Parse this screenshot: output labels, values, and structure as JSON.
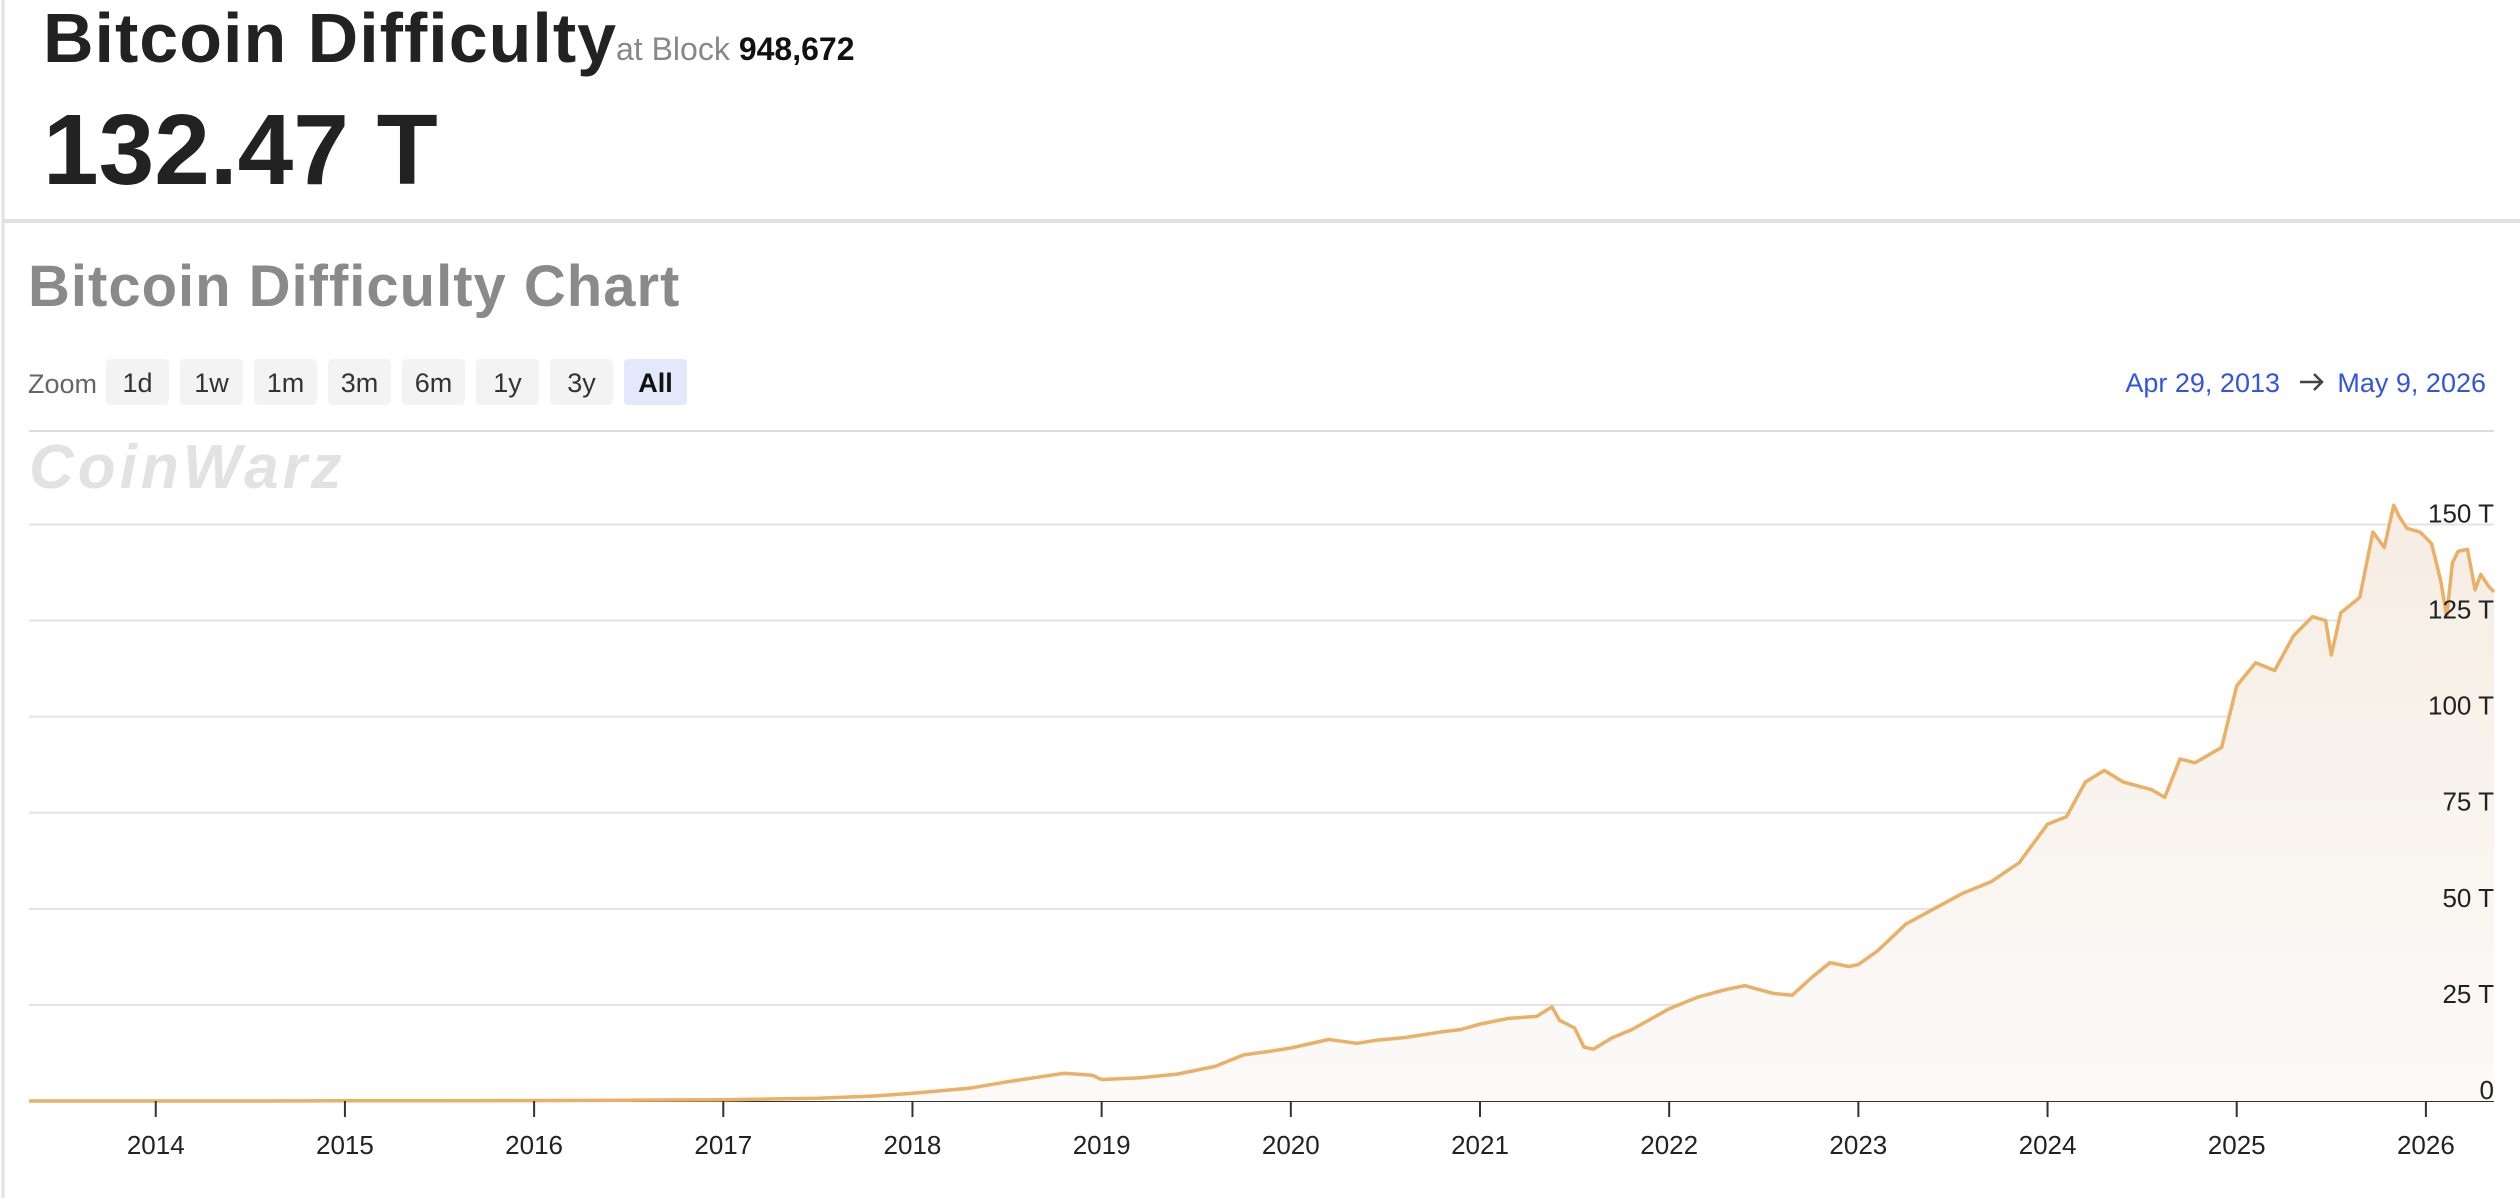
{
  "header": {
    "title": "Bitcoin Difficulty",
    "block_prefix": "at Block",
    "block": "948,672",
    "value": "132.47 T"
  },
  "controls": {
    "zoom_label": "Zoom",
    "zoom_options": [
      "1d",
      "1w",
      "1m",
      "3m",
      "6m",
      "1y",
      "3y",
      "All"
    ],
    "zoom_active": 7
  },
  "range": {
    "from": "Apr 29, 2013",
    "to": "May 9, 2026"
  },
  "watermark": "CoinWarz",
  "chart_data": {
    "type": "line",
    "title": "Bitcoin Difficulty Chart",
    "color": "#e9b066",
    "grid": true,
    "x": [
      2013.33,
      2013.6,
      2014,
      2014.5,
      2015,
      2015.5,
      2016,
      2016.5,
      2017,
      2017.5,
      2017.8,
      2018,
      2018.3,
      2018.5,
      2018.8,
      2018.95,
      2019,
      2019.2,
      2019.4,
      2019.6,
      2019.75,
      2019.9,
      2020,
      2020.2,
      2020.35,
      2020.45,
      2020.6,
      2020.8,
      2020.9,
      2021,
      2021.15,
      2021.3,
      2021.38,
      2021.42,
      2021.5,
      2021.55,
      2021.6,
      2021.7,
      2021.8,
      2022,
      2022.15,
      2022.3,
      2022.4,
      2022.55,
      2022.65,
      2022.75,
      2022.85,
      2022.95,
      2023,
      2023.1,
      2023.25,
      2023.4,
      2023.55,
      2023.7,
      2023.85,
      2024,
      2024.1,
      2024.2,
      2024.3,
      2024.4,
      2024.55,
      2024.62,
      2024.7,
      2024.78,
      2024.85,
      2024.92,
      2025,
      2025.1,
      2025.2,
      2025.3,
      2025.4,
      2025.47,
      2025.5,
      2025.55,
      2025.65,
      2025.72,
      2025.78,
      2025.83,
      2025.86,
      2025.9,
      2025.97,
      2026.03,
      2026.08,
      2026.11,
      2026.14,
      2026.17,
      2026.22,
      2026.26,
      2026.29,
      2026.33,
      2026.36
    ],
    "values": [
      1e-05,
      0.0002,
      0.0014,
      0.012,
      0.04,
      0.05,
      0.1,
      0.2,
      0.3,
      0.7,
      1.3,
      2.0,
      3.3,
      5.0,
      7.2,
      6.7,
      5.6,
      6.0,
      7.0,
      9.0,
      12,
      13,
      13.8,
      16,
      15,
      15.8,
      16.5,
      18,
      18.6,
      20,
      21.5,
      22,
      24.5,
      21,
      19,
      14,
      13.5,
      16.5,
      18.5,
      24,
      27,
      29,
      30,
      28,
      27.5,
      32,
      36,
      35,
      35.5,
      39,
      46,
      50,
      54,
      57,
      62,
      72,
      74,
      83,
      86,
      83,
      81,
      79,
      89,
      88,
      90,
      92,
      108,
      114,
      112,
      121,
      126,
      125,
      116,
      127,
      131,
      148,
      144,
      155,
      152,
      149,
      148,
      145,
      135,
      126,
      140,
      143,
      143.5,
      133,
      137,
      134,
      132.47
    ],
    "xlim": [
      2013.33,
      2026.36
    ],
    "xticks": [
      2014,
      2015,
      2016,
      2017,
      2018,
      2019,
      2020,
      2021,
      2022,
      2023,
      2024,
      2025,
      2026
    ],
    "ylim": [
      0,
      160
    ],
    "yticks": [
      0,
      {
        "value": 25,
        "label": "25 T"
      },
      {
        "value": 50,
        "label": "50 T"
      },
      {
        "value": 75,
        "label": "75 T"
      },
      {
        "value": 100,
        "label": "100 T"
      },
      {
        "value": 125,
        "label": "125 T"
      },
      {
        "value": 150,
        "label": "150 T"
      }
    ]
  }
}
